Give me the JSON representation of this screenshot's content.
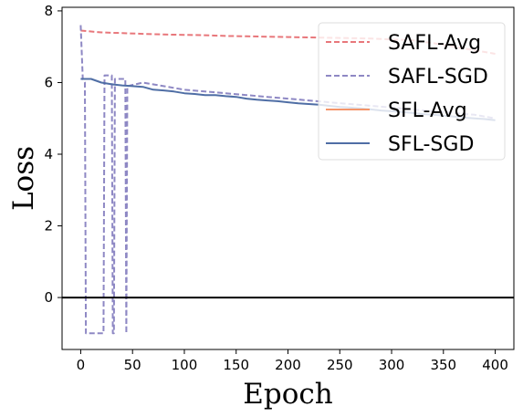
{
  "chart_data": {
    "type": "line",
    "xlabel": "Epoch",
    "ylabel": "Loss",
    "xlim": [
      -18,
      418
    ],
    "ylim": [
      -1.45,
      8.1
    ],
    "xticks": [
      0,
      50,
      100,
      150,
      200,
      250,
      300,
      350,
      400
    ],
    "yticks": [
      0,
      2,
      4,
      6,
      8
    ],
    "x_tick_labels": [
      "0",
      "50",
      "100",
      "150",
      "200",
      "250",
      "300",
      "350",
      "400"
    ],
    "y_tick_labels": [
      "0",
      "2",
      "4",
      "6",
      "8"
    ],
    "grid": false,
    "legend_position": "top-right",
    "reference_line": {
      "y": 0,
      "color": "#000000"
    },
    "series": [
      {
        "name": "SAFL-Avg",
        "color": "#e8777b",
        "style": "dashed",
        "x": [
          0,
          20,
          40,
          60,
          80,
          100,
          120,
          140,
          160,
          180,
          200,
          220,
          240,
          260,
          280,
          300,
          320,
          340,
          360,
          380,
          400
        ],
        "y": [
          7.45,
          7.4,
          7.38,
          7.36,
          7.34,
          7.33,
          7.32,
          7.3,
          7.29,
          7.28,
          7.27,
          7.26,
          7.25,
          7.24,
          7.23,
          7.2,
          7.18,
          7.1,
          7.0,
          6.9,
          6.8
        ]
      },
      {
        "name": "SAFL-SGD",
        "color": "#8e88c4",
        "style": "dashed",
        "x": [
          0,
          2,
          4,
          5,
          22,
          23,
          30,
          31,
          32,
          33,
          43,
          44,
          45,
          60,
          80,
          100,
          120,
          140,
          160,
          180,
          200,
          220,
          240,
          260,
          280,
          300,
          320,
          340,
          360,
          380,
          400
        ],
        "y": [
          7.6,
          6.1,
          6.0,
          -1.0,
          -1.0,
          6.2,
          6.2,
          -1.0,
          -1.0,
          6.1,
          6.1,
          -1.0,
          5.9,
          6.0,
          5.9,
          5.8,
          5.75,
          5.7,
          5.65,
          5.6,
          5.55,
          5.5,
          5.45,
          5.4,
          5.35,
          5.3,
          5.25,
          5.2,
          5.15,
          5.1,
          5.0
        ]
      },
      {
        "name": "SFL-Avg",
        "color": "#f4956a",
        "style": "solid",
        "x": [],
        "y": []
      },
      {
        "name": "SFL-SGD",
        "color": "#4f6ea5",
        "style": "solid",
        "x": [
          0,
          10,
          20,
          30,
          40,
          50,
          60,
          70,
          80,
          90,
          100,
          110,
          120,
          130,
          140,
          150,
          160,
          170,
          180,
          190,
          200,
          210,
          220,
          230,
          240,
          250,
          260,
          270,
          280,
          290,
          300,
          310,
          320,
          330,
          340,
          350,
          360,
          370,
          380,
          390,
          400
        ],
        "y": [
          6.1,
          6.1,
          6.0,
          5.95,
          5.92,
          5.9,
          5.88,
          5.8,
          5.78,
          5.75,
          5.7,
          5.68,
          5.65,
          5.65,
          5.62,
          5.6,
          5.55,
          5.52,
          5.5,
          5.48,
          5.45,
          5.42,
          5.4,
          5.38,
          5.35,
          5.32,
          5.3,
          5.28,
          5.25,
          5.22,
          5.2,
          5.18,
          5.15,
          5.12,
          5.1,
          5.08,
          5.05,
          5.02,
          5.0,
          4.98,
          4.95
        ]
      }
    ]
  }
}
